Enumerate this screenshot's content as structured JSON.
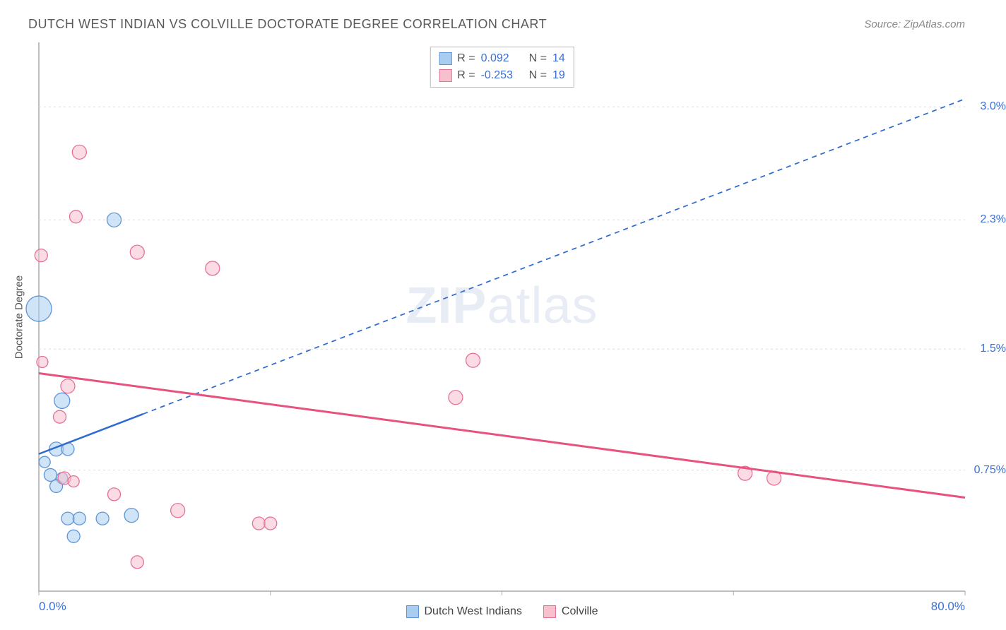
{
  "title": "DUTCH WEST INDIAN VS COLVILLE DOCTORATE DEGREE CORRELATION CHART",
  "source_label": "Source:",
  "source_name": "ZipAtlas.com",
  "y_axis_label": "Doctorate Degree",
  "watermark": "ZIPatlas",
  "chart": {
    "type": "scatter-with-regression",
    "background_color": "#ffffff",
    "grid_color": "#dddddd",
    "border_color": "#aaaaaa",
    "xlim": [
      0,
      80
    ],
    "ylim": [
      0,
      3.4
    ],
    "x_min_label": "0.0%",
    "x_max_label": "80.0%",
    "x_major_ticks": [
      0,
      20,
      40,
      60,
      80
    ],
    "y_ticks": [
      {
        "v": 0.75,
        "label": "0.75%"
      },
      {
        "v": 1.5,
        "label": "1.5%"
      },
      {
        "v": 2.3,
        "label": "2.3%"
      },
      {
        "v": 3.0,
        "label": "3.0%"
      }
    ],
    "series": [
      {
        "name": "Dutch West Indians",
        "fill": "#a9cdf0",
        "stroke": "#5e95d6",
        "fill_opacity": 0.55,
        "regression": {
          "x1": 0,
          "y1": 0.85,
          "x2": 80,
          "y2": 3.05,
          "solid_until_x": 9,
          "color": "#2f6bd0",
          "width": 2.5,
          "dash": "7 6"
        },
        "R": "0.092",
        "N": "14",
        "points": [
          {
            "x": 0.0,
            "y": 1.75,
            "r": 18
          },
          {
            "x": 6.5,
            "y": 2.3,
            "r": 10
          },
          {
            "x": 2.0,
            "y": 1.18,
            "r": 11
          },
          {
            "x": 1.5,
            "y": 0.88,
            "r": 10
          },
          {
            "x": 2.5,
            "y": 0.88,
            "r": 9
          },
          {
            "x": 0.5,
            "y": 0.8,
            "r": 8
          },
          {
            "x": 1.0,
            "y": 0.72,
            "r": 9
          },
          {
            "x": 2.0,
            "y": 0.7,
            "r": 8
          },
          {
            "x": 1.5,
            "y": 0.65,
            "r": 9
          },
          {
            "x": 2.5,
            "y": 0.45,
            "r": 9
          },
          {
            "x": 3.5,
            "y": 0.45,
            "r": 9
          },
          {
            "x": 5.5,
            "y": 0.45,
            "r": 9
          },
          {
            "x": 8.0,
            "y": 0.47,
            "r": 10
          },
          {
            "x": 3.0,
            "y": 0.34,
            "r": 9
          }
        ]
      },
      {
        "name": "Colville",
        "fill": "#f7c0cd",
        "stroke": "#e77096",
        "fill_opacity": 0.55,
        "regression": {
          "x1": 0,
          "y1": 1.35,
          "x2": 80,
          "y2": 0.58,
          "solid_until_x": 80,
          "color": "#e7527e",
          "width": 3,
          "dash": ""
        },
        "R": "-0.253",
        "N": "19",
        "points": [
          {
            "x": 3.5,
            "y": 2.72,
            "r": 10
          },
          {
            "x": 3.2,
            "y": 2.32,
            "r": 9
          },
          {
            "x": 0.2,
            "y": 2.08,
            "r": 9
          },
          {
            "x": 8.5,
            "y": 2.1,
            "r": 10
          },
          {
            "x": 15.0,
            "y": 2.0,
            "r": 10
          },
          {
            "x": 0.3,
            "y": 1.42,
            "r": 8
          },
          {
            "x": 2.5,
            "y": 1.27,
            "r": 10
          },
          {
            "x": 37.5,
            "y": 1.43,
            "r": 10
          },
          {
            "x": 36.0,
            "y": 1.2,
            "r": 10
          },
          {
            "x": 1.8,
            "y": 1.08,
            "r": 9
          },
          {
            "x": 2.2,
            "y": 0.7,
            "r": 9
          },
          {
            "x": 3.0,
            "y": 0.68,
            "r": 8
          },
          {
            "x": 6.5,
            "y": 0.6,
            "r": 9
          },
          {
            "x": 61.0,
            "y": 0.73,
            "r": 10
          },
          {
            "x": 63.5,
            "y": 0.7,
            "r": 10
          },
          {
            "x": 12.0,
            "y": 0.5,
            "r": 10
          },
          {
            "x": 19.0,
            "y": 0.42,
            "r": 9
          },
          {
            "x": 20.0,
            "y": 0.42,
            "r": 9
          },
          {
            "x": 8.5,
            "y": 0.18,
            "r": 9
          }
        ]
      }
    ]
  },
  "legend_top": {
    "r_label": "R =",
    "n_label": "N ="
  }
}
